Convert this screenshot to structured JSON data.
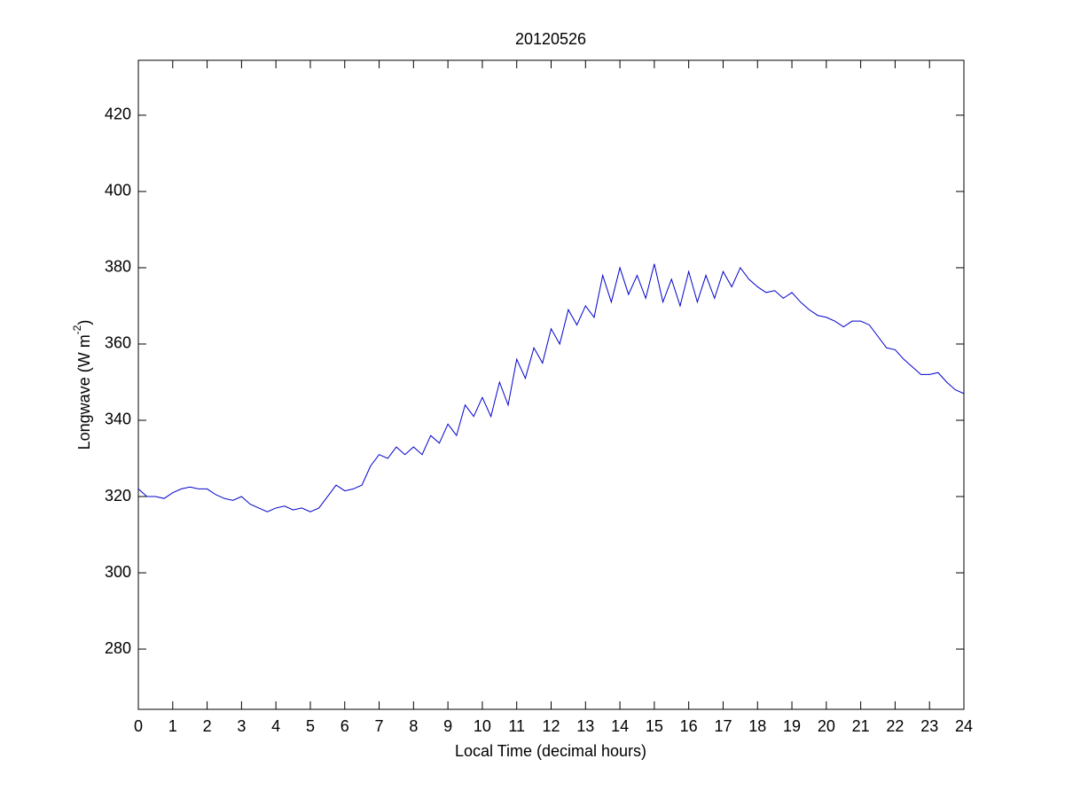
{
  "chart_data": {
    "type": "line",
    "title": "20120526",
    "x_label": "Local Time (decimal hours)",
    "y_label": "Longwave (W m",
    "y_label_sup": "-2",
    "y_label_end": ")",
    "x": [
      0,
      0.25,
      0.5,
      0.75,
      1,
      1.25,
      1.5,
      1.75,
      2,
      2.25,
      2.5,
      2.75,
      3,
      3.25,
      3.5,
      3.75,
      4,
      4.25,
      4.5,
      4.75,
      5,
      5.25,
      5.5,
      5.75,
      6,
      6.25,
      6.5,
      6.75,
      7,
      7.25,
      7.5,
      7.75,
      8,
      8.25,
      8.5,
      8.75,
      9,
      9.25,
      9.5,
      9.75,
      10,
      10.25,
      10.5,
      10.75,
      11,
      11.25,
      11.5,
      11.75,
      12,
      12.25,
      12.5,
      12.75,
      13,
      13.25,
      13.5,
      13.75,
      14,
      14.25,
      14.5,
      14.75,
      15,
      15.25,
      15.5,
      15.75,
      16,
      16.25,
      16.5,
      16.75,
      17,
      17.25,
      17.5,
      17.75,
      18,
      18.25,
      18.5,
      18.75,
      19,
      19.25,
      19.5,
      19.75,
      20,
      20.25,
      20.5,
      20.75,
      21,
      21.25,
      21.5,
      21.75,
      22,
      22.25,
      22.5,
      22.75,
      23,
      23.25,
      23.5,
      23.75,
      24
    ],
    "series": [
      {
        "name": "Longwave",
        "color": "#0000cc",
        "values": [
          322,
          320,
          320,
          319.5,
          321,
          322,
          322.5,
          322,
          322,
          320.5,
          319.5,
          319,
          320,
          318,
          317,
          316,
          317,
          317.5,
          316.5,
          317,
          316,
          317,
          320,
          323,
          321.5,
          322,
          323,
          328,
          331,
          330,
          333,
          331,
          333,
          331,
          336,
          334,
          339,
          336,
          344,
          341,
          346,
          341,
          350,
          344,
          356,
          351,
          359,
          355,
          364,
          360,
          369,
          365,
          370,
          367,
          378,
          371,
          380,
          373,
          378,
          372,
          381,
          371,
          377,
          370,
          379,
          371,
          378,
          372,
          379,
          375,
          380,
          377,
          375,
          373.5,
          374,
          372,
          373.5,
          371,
          369,
          367.5,
          367,
          366,
          364.5,
          366,
          366,
          365,
          362,
          359,
          358.5,
          356,
          354,
          352,
          352,
          352.5,
          350,
          348,
          347
        ]
      }
    ],
    "xlim": [
      0,
      24
    ],
    "ylim": [
      264.2,
      434.4
    ],
    "xticks": [
      0,
      1,
      2,
      3,
      4,
      5,
      6,
      7,
      8,
      9,
      10,
      11,
      12,
      13,
      14,
      15,
      16,
      17,
      18,
      19,
      20,
      21,
      22,
      23,
      24
    ],
    "yticks": [
      280,
      300,
      320,
      340,
      360,
      380,
      400,
      420
    ],
    "grid": false
  }
}
